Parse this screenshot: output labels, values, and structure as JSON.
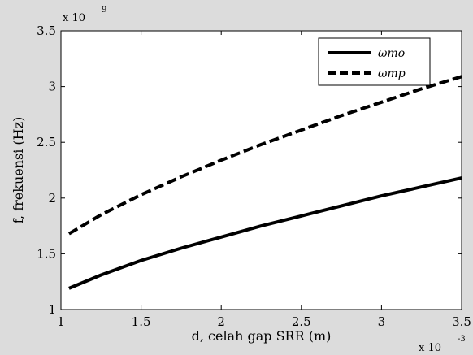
{
  "chart_data": {
    "type": "line",
    "xlabel": "d, celah gap SRR (m)",
    "ylabel": "f, frekuensi (Hz)",
    "x_multiplier": {
      "base": "x 10",
      "exponent": "-3"
    },
    "y_multiplier": {
      "base": "x 10",
      "exponent": "9"
    },
    "xlim": [
      1,
      3.5
    ],
    "ylim": [
      1,
      3.5
    ],
    "xticks": [
      1,
      1.5,
      2,
      2.5,
      3,
      3.5
    ],
    "yticks": [
      1,
      1.5,
      2,
      2.5,
      3,
      3.5
    ],
    "xtick_labels": [
      "1",
      "1.5",
      "2",
      "2.5",
      "3",
      "3.5"
    ],
    "ytick_labels": [
      "1",
      "1.5",
      "2",
      "2.5",
      "3",
      "3.5"
    ],
    "grid": false,
    "legend_position": "top-right",
    "series": [
      {
        "name": "ωmo",
        "style": "solid",
        "color": "#000000",
        "x": [
          1.05,
          1.25,
          1.5,
          1.75,
          2.0,
          2.25,
          2.5,
          2.75,
          3.0,
          3.25,
          3.5
        ],
        "y": [
          1.19,
          1.31,
          1.44,
          1.55,
          1.65,
          1.75,
          1.84,
          1.93,
          2.02,
          2.1,
          2.18
        ]
      },
      {
        "name": "ωmp",
        "style": "dashed",
        "color": "#000000",
        "x": [
          1.05,
          1.25,
          1.5,
          1.75,
          2.0,
          2.25,
          2.5,
          2.75,
          3.0,
          3.25,
          3.5
        ],
        "y": [
          1.68,
          1.85,
          2.03,
          2.19,
          2.34,
          2.48,
          2.61,
          2.74,
          2.86,
          2.98,
          3.09
        ]
      }
    ]
  }
}
